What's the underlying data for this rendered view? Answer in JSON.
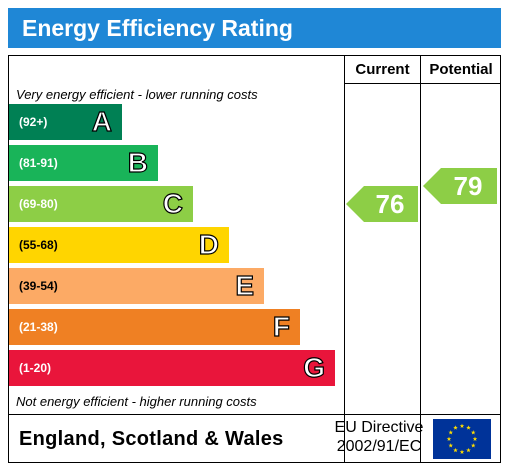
{
  "title": "Energy Efficiency Rating",
  "columns": {
    "current": "Current",
    "potential": "Potential"
  },
  "top_caption": "Very energy efficient - lower running costs",
  "bottom_caption": "Not energy efficient - higher running costs",
  "footer": {
    "region": "England, Scotland & Wales",
    "directive_line1": "EU Directive",
    "directive_line2": "2002/91/EC",
    "flag_icon": "eu-flag-icon"
  },
  "chart_data": {
    "type": "bar",
    "title": "Energy Efficiency Rating",
    "categories": [
      "A",
      "B",
      "C",
      "D",
      "E",
      "F",
      "G"
    ],
    "bands": [
      {
        "letter": "A",
        "range": "(92+)",
        "color": "#008054"
      },
      {
        "letter": "B",
        "range": "(81-91)",
        "color": "#19b459"
      },
      {
        "letter": "C",
        "range": "(69-80)",
        "color": "#8dce46"
      },
      {
        "letter": "D",
        "range": "(55-68)",
        "color": "#ffd500"
      },
      {
        "letter": "E",
        "range": "(39-54)",
        "color": "#fcaa65"
      },
      {
        "letter": "F",
        "range": "(21-38)",
        "color": "#ef8023"
      },
      {
        "letter": "G",
        "range": "(1-20)",
        "color": "#e9153b"
      }
    ],
    "current": {
      "value": 76,
      "band": "C",
      "color": "#8dce46"
    },
    "potential": {
      "value": 79,
      "band": "C",
      "color": "#8dce46"
    }
  }
}
